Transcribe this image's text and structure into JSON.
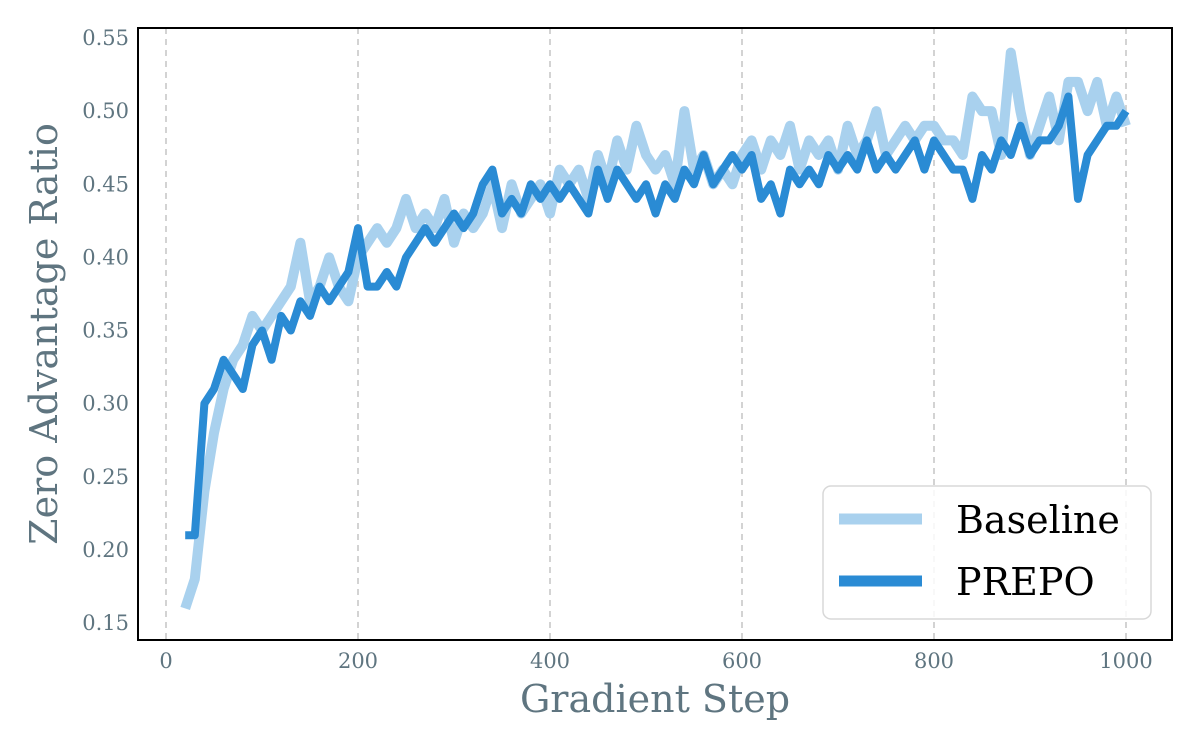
{
  "chart_data": {
    "type": "line",
    "title": "",
    "xlabel": "Gradient Step",
    "ylabel": "Zero Advantage Ratio",
    "xlim": [
      -15,
      1010
    ],
    "ylim": [
      0.137,
      0.555
    ],
    "xticks": [
      0,
      200,
      400,
      600,
      800,
      1000
    ],
    "yticks": [
      0.15,
      0.2,
      0.25,
      0.3,
      0.35,
      0.4,
      0.45,
      0.5,
      0.55
    ],
    "grid": {
      "x": true,
      "y": false,
      "style": "dashed"
    },
    "legend_position": "lower right",
    "series": [
      {
        "name": "Baseline",
        "color": "#a9d1ee",
        "x": [
          20,
          30,
          40,
          50,
          60,
          70,
          80,
          90,
          100,
          110,
          120,
          130,
          140,
          150,
          160,
          170,
          180,
          190,
          200,
          210,
          220,
          230,
          240,
          250,
          260,
          270,
          280,
          290,
          300,
          310,
          320,
          330,
          340,
          350,
          360,
          370,
          380,
          390,
          400,
          410,
          420,
          430,
          440,
          450,
          460,
          470,
          480,
          490,
          500,
          510,
          520,
          530,
          540,
          550,
          560,
          570,
          580,
          590,
          600,
          610,
          620,
          630,
          640,
          650,
          660,
          670,
          680,
          690,
          700,
          710,
          720,
          730,
          740,
          750,
          760,
          770,
          780,
          790,
          800,
          810,
          820,
          830,
          840,
          850,
          860,
          870,
          880,
          890,
          900,
          910,
          920,
          930,
          940,
          950,
          960,
          970,
          980,
          990,
          1000
        ],
        "values": [
          0.16,
          0.18,
          0.24,
          0.28,
          0.31,
          0.33,
          0.34,
          0.36,
          0.35,
          0.36,
          0.37,
          0.38,
          0.41,
          0.37,
          0.38,
          0.4,
          0.38,
          0.37,
          0.4,
          0.41,
          0.42,
          0.41,
          0.42,
          0.44,
          0.42,
          0.43,
          0.42,
          0.44,
          0.41,
          0.43,
          0.42,
          0.43,
          0.45,
          0.42,
          0.45,
          0.43,
          0.44,
          0.45,
          0.43,
          0.46,
          0.45,
          0.46,
          0.44,
          0.47,
          0.45,
          0.48,
          0.46,
          0.49,
          0.47,
          0.46,
          0.47,
          0.45,
          0.5,
          0.46,
          0.47,
          0.45,
          0.46,
          0.45,
          0.47,
          0.48,
          0.46,
          0.48,
          0.47,
          0.49,
          0.46,
          0.48,
          0.47,
          0.48,
          0.46,
          0.49,
          0.47,
          0.48,
          0.5,
          0.47,
          0.48,
          0.49,
          0.48,
          0.49,
          0.49,
          0.48,
          0.48,
          0.47,
          0.51,
          0.5,
          0.5,
          0.47,
          0.54,
          0.5,
          0.47,
          0.49,
          0.51,
          0.48,
          0.52,
          0.52,
          0.5,
          0.52,
          0.49,
          0.51,
          0.49
        ]
      },
      {
        "name": "PREPO",
        "color": "#2a8bd4",
        "x": [
          20,
          30,
          40,
          50,
          60,
          70,
          80,
          90,
          100,
          110,
          120,
          130,
          140,
          150,
          160,
          170,
          180,
          190,
          200,
          210,
          220,
          230,
          240,
          250,
          260,
          270,
          280,
          290,
          300,
          310,
          320,
          330,
          340,
          350,
          360,
          370,
          380,
          390,
          400,
          410,
          420,
          430,
          440,
          450,
          460,
          470,
          480,
          490,
          500,
          510,
          520,
          530,
          540,
          550,
          560,
          570,
          580,
          590,
          600,
          610,
          620,
          630,
          640,
          650,
          660,
          670,
          680,
          690,
          700,
          710,
          720,
          730,
          740,
          750,
          760,
          770,
          780,
          790,
          800,
          810,
          820,
          830,
          840,
          850,
          860,
          870,
          880,
          890,
          900,
          910,
          920,
          930,
          940,
          950,
          960,
          970,
          980,
          990,
          1000
        ],
        "values": [
          0.21,
          0.21,
          0.3,
          0.31,
          0.33,
          0.32,
          0.31,
          0.34,
          0.35,
          0.33,
          0.36,
          0.35,
          0.37,
          0.36,
          0.38,
          0.37,
          0.38,
          0.39,
          0.42,
          0.38,
          0.38,
          0.39,
          0.38,
          0.4,
          0.41,
          0.42,
          0.41,
          0.42,
          0.43,
          0.42,
          0.43,
          0.45,
          0.46,
          0.43,
          0.44,
          0.43,
          0.45,
          0.44,
          0.45,
          0.44,
          0.45,
          0.44,
          0.43,
          0.46,
          0.44,
          0.46,
          0.45,
          0.44,
          0.45,
          0.43,
          0.45,
          0.44,
          0.46,
          0.45,
          0.47,
          0.45,
          0.46,
          0.47,
          0.46,
          0.47,
          0.44,
          0.45,
          0.43,
          0.46,
          0.45,
          0.46,
          0.45,
          0.47,
          0.46,
          0.47,
          0.46,
          0.48,
          0.46,
          0.47,
          0.46,
          0.47,
          0.48,
          0.46,
          0.48,
          0.47,
          0.46,
          0.46,
          0.44,
          0.47,
          0.46,
          0.48,
          0.47,
          0.49,
          0.47,
          0.48,
          0.48,
          0.49,
          0.51,
          0.44,
          0.47,
          0.48,
          0.49,
          0.49,
          0.5
        ]
      }
    ]
  }
}
